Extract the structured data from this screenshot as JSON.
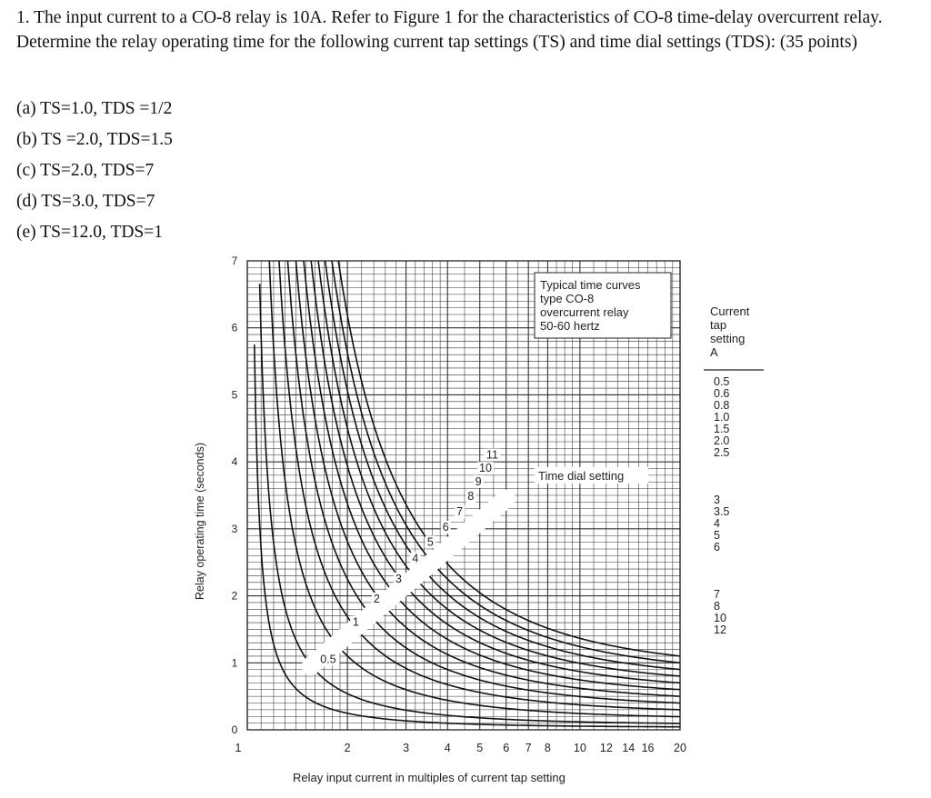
{
  "question": {
    "text": "1. The input current to a CO-8 relay is 10A. Refer to Figure 1 for the characteristics of CO-8 time-delay overcurrent relay. Determine the relay operating time for the following current tap settings (TS) and time dial settings (TDS): (35 points)",
    "parts": [
      "(a) TS=1.0, TDS =1/2",
      "(b) TS =2.0, TDS=1.5",
      "(c) TS=2.0, TDS=7",
      "(d) TS=3.0, TDS=7",
      "(e) TS=12.0, TDS=1"
    ]
  },
  "figure": {
    "box_text": [
      "Typical time curves",
      "type CO-8",
      "overcurrent relay",
      "50-60 hertz"
    ],
    "ylabel": "Relay operating time (seconds)",
    "xlabel": "Relay input current in multiples of current tap setting",
    "y_ticks": [
      "0",
      "1",
      "2",
      "3",
      "4",
      "5",
      "6",
      "7"
    ],
    "x_ticks": [
      "1",
      "2",
      "3",
      "4",
      "5",
      "6",
      "7",
      "8",
      "10",
      "12",
      "14",
      "16",
      "20"
    ],
    "dial_title": "Time dial setting",
    "dial_labels": [
      "0.5",
      "1",
      "2",
      "3",
      "4",
      "5",
      "6",
      "7",
      "8",
      "9",
      "10",
      "11"
    ],
    "tap_header": [
      "Current",
      "tap",
      "setting",
      "A"
    ],
    "tap_values": [
      "0.5",
      "0.6",
      "0.8",
      "1.0",
      "1.5",
      "2.0",
      "2.5",
      "3",
      "3.5",
      "4",
      "5",
      "6",
      "7",
      "8",
      "10",
      "12"
    ]
  }
}
